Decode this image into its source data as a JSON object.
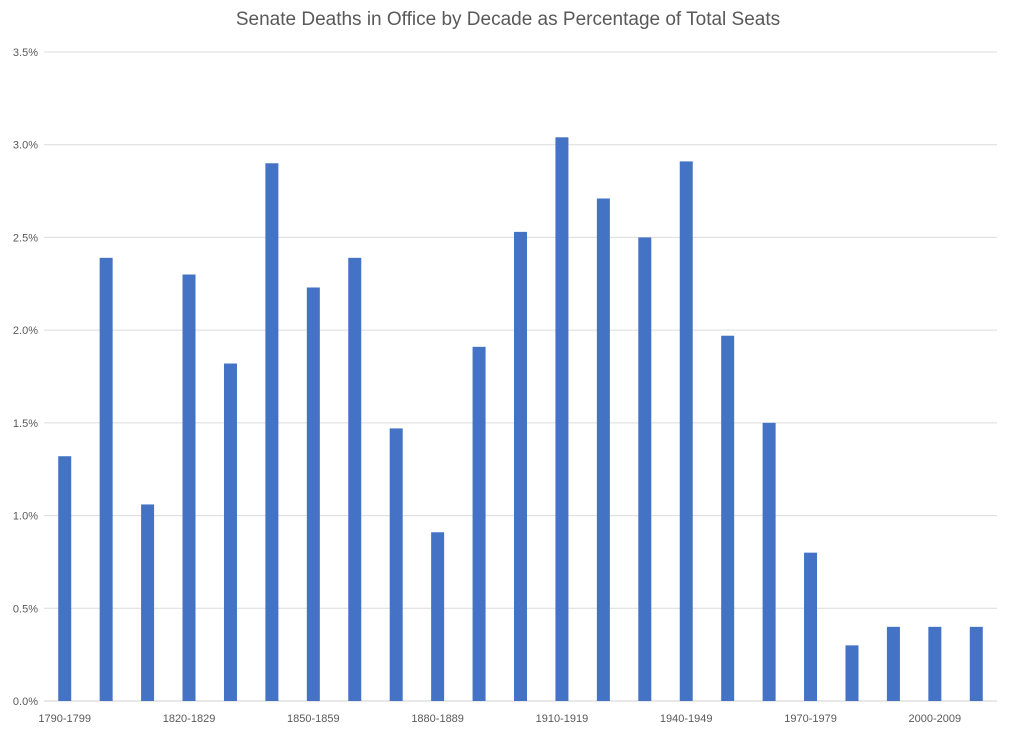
{
  "chart_data": {
    "type": "bar",
    "title": "Senate Deaths in Office by Decade as Percentage of Total Seats",
    "xlabel": "",
    "ylabel": "",
    "ylim": [
      0,
      3.5
    ],
    "y_ticks": [
      "0.0%",
      "0.5%",
      "1.0%",
      "1.5%",
      "2.0%",
      "2.5%",
      "3.0%",
      "3.5%"
    ],
    "y_tick_values": [
      0,
      0.5,
      1.0,
      1.5,
      2.0,
      2.5,
      3.0,
      3.5
    ],
    "grid": true,
    "bar_color": "#4472c4",
    "categories": [
      "1790-1799",
      "1800-1809",
      "1810-1819",
      "1820-1829",
      "1830-1839",
      "1840-1849",
      "1850-1859",
      "1860-1869",
      "1870-1879",
      "1880-1889",
      "1890-1899",
      "1900-1909",
      "1910-1919",
      "1920-1929",
      "1930-1939",
      "1940-1949",
      "1950-1959",
      "1960-1969",
      "1970-1979",
      "1980-1989",
      "1990-1999",
      "2000-2009",
      "2010-2019"
    ],
    "visible_x_labels": [
      "1790-1799",
      "1820-1829",
      "1850-1859",
      "1880-1889",
      "1910-1919",
      "1940-1949",
      "1970-1979",
      "2000-2009"
    ],
    "values": [
      1.32,
      2.39,
      1.06,
      2.3,
      1.82,
      2.9,
      2.23,
      2.39,
      1.47,
      0.91,
      1.91,
      2.53,
      3.04,
      2.71,
      2.5,
      2.91,
      1.97,
      1.5,
      0.8,
      0.3,
      0.4,
      0.4,
      0.4
    ]
  }
}
